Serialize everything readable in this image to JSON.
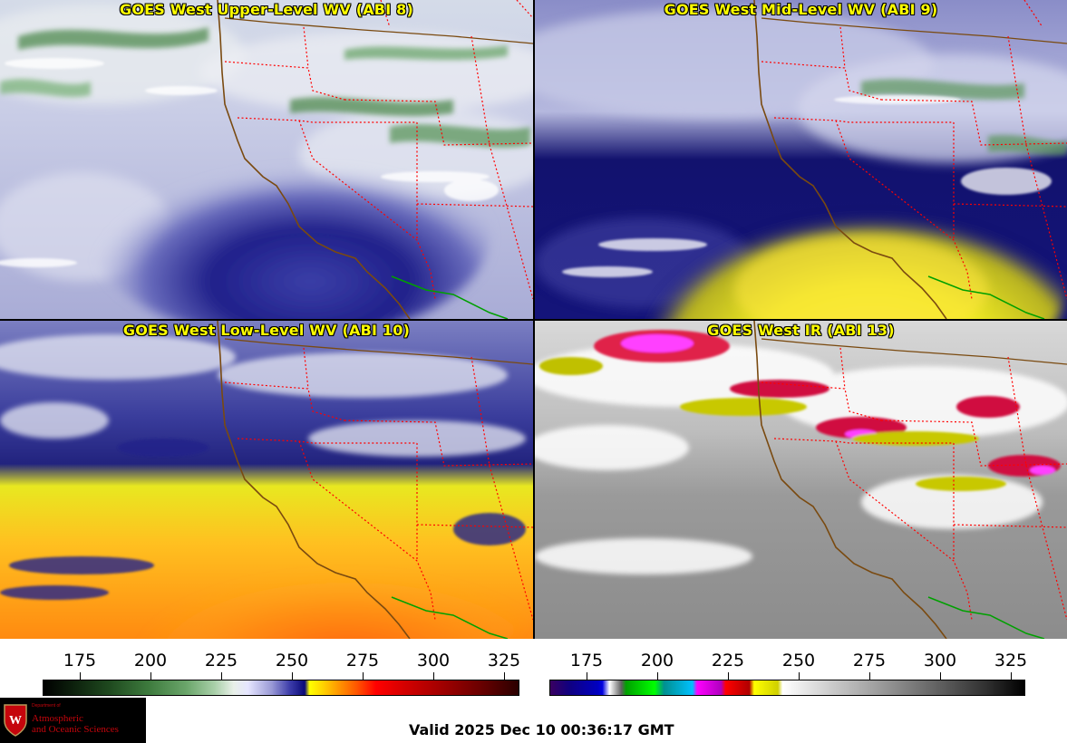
{
  "panels": [
    {
      "title": "GOES West Upper-Level WV (ABI 8)"
    },
    {
      "title": "GOES West Mid-Level WV (ABI 9)"
    },
    {
      "title": "GOES West Low-Level WV (ABI 10)"
    },
    {
      "title": "GOES West IR (ABI 13)"
    }
  ],
  "colorbars": [
    {
      "name": "water-vapor",
      "ticks": [
        "175",
        "200",
        "225",
        "250",
        "275",
        "300",
        "325"
      ]
    },
    {
      "name": "infrared",
      "ticks": [
        "175",
        "200",
        "225",
        "250",
        "275",
        "300",
        "325"
      ]
    }
  ],
  "footer": {
    "logo_department": "Department of",
    "logo_line1": "Atmospheric",
    "logo_line2": "and Oceanic Sciences",
    "valid_time": "Valid 2025 Dec 10 00:36:17 GMT"
  },
  "colors": {
    "title_text": "#ffff00",
    "state_borders": "#ff0000",
    "coastline": "#7a4a10",
    "mexico_border": "#00a000",
    "logo_red": "#c5050c"
  }
}
